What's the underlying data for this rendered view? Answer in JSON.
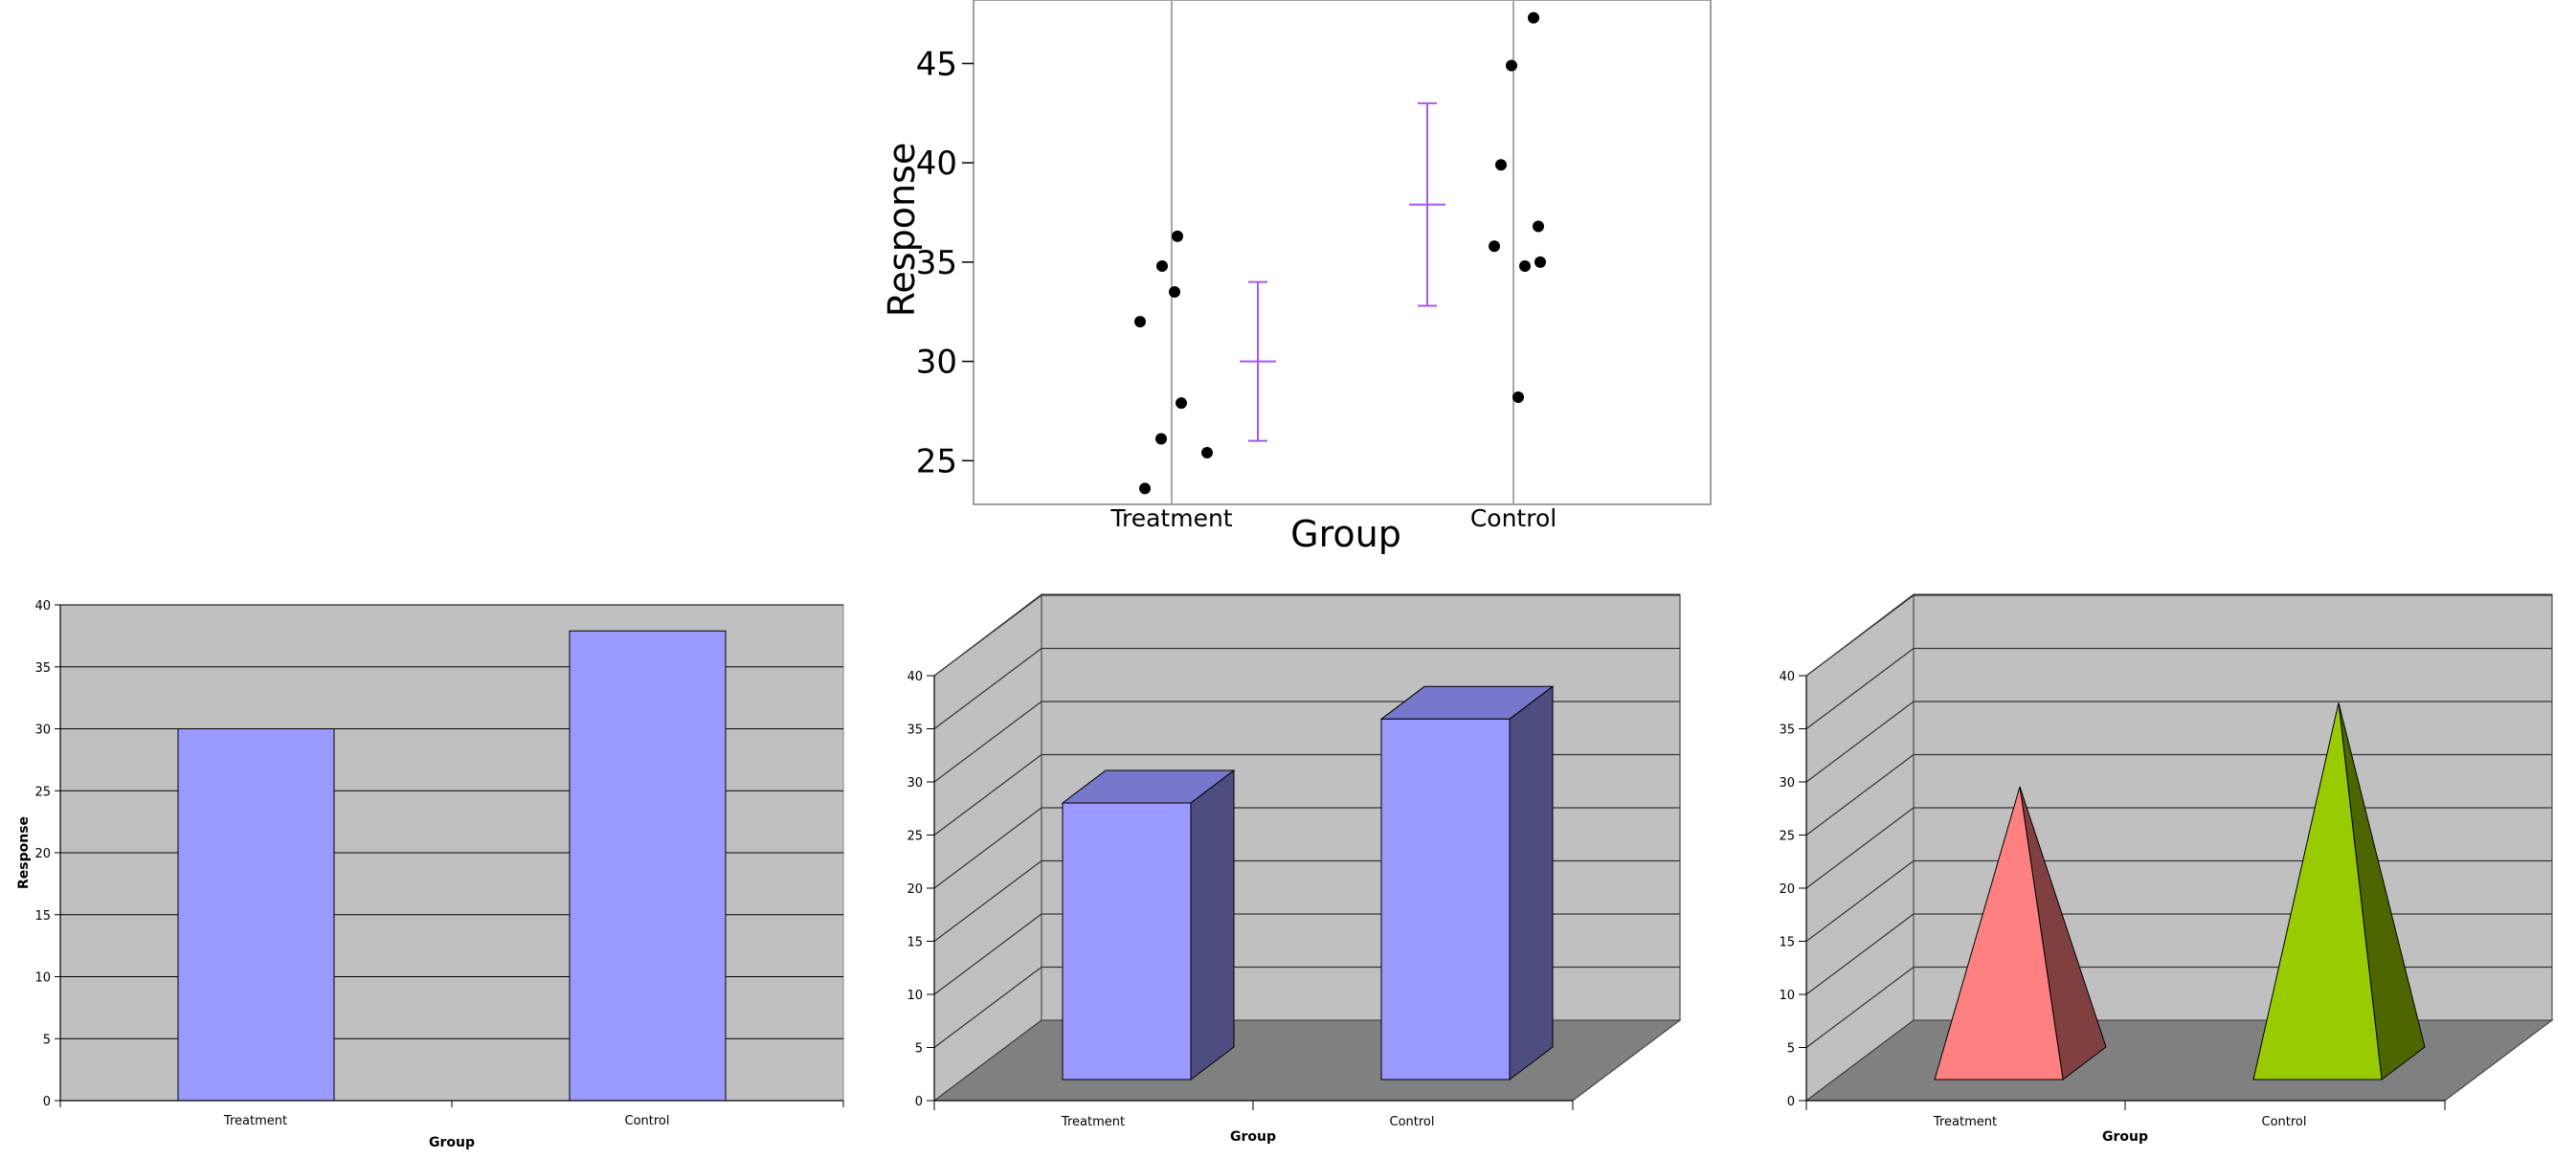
{
  "chart_data": [
    {
      "type": "scatter",
      "xlabel": "Group",
      "ylabel": "Response",
      "categories": [
        "Treatment",
        "Control"
      ],
      "yticks": [
        25,
        30,
        35,
        40,
        45
      ],
      "ylim": [
        22.8,
        48.2
      ],
      "grid": "vertical lines at categories",
      "points": [
        {
          "group": "Treatment",
          "y": 32.0
        },
        {
          "group": "Treatment",
          "y": 34.8
        },
        {
          "group": "Treatment",
          "y": 36.3
        },
        {
          "group": "Treatment",
          "y": 33.5
        },
        {
          "group": "Treatment",
          "y": 27.9
        },
        {
          "group": "Treatment",
          "y": 26.1
        },
        {
          "group": "Treatment",
          "y": 25.4
        },
        {
          "group": "Treatment",
          "y": 23.6
        },
        {
          "group": "Control",
          "y": 47.3
        },
        {
          "group": "Control",
          "y": 44.9
        },
        {
          "group": "Control",
          "y": 39.9
        },
        {
          "group": "Control",
          "y": 35.8
        },
        {
          "group": "Control",
          "y": 34.8
        },
        {
          "group": "Control",
          "y": 36.8
        },
        {
          "group": "Control",
          "y": 35.0
        },
        {
          "group": "Control",
          "y": 28.2
        }
      ],
      "error_bars": [
        {
          "group": "Treatment",
          "mean": 30.0,
          "low": 26.0,
          "high": 34.0
        },
        {
          "group": "Control",
          "mean": 37.9,
          "low": 32.8,
          "high": 43.0
        }
      ],
      "colors": {
        "points": "#000000",
        "error_bars": "#a855f7",
        "grid": "#a8a8a8"
      }
    },
    {
      "type": "bar",
      "xlabel": "Group",
      "ylabel": "Response",
      "categories": [
        "Treatment",
        "Control"
      ],
      "values": [
        30.0,
        37.9
      ],
      "ylim": [
        0,
        40
      ],
      "yticks": [
        0,
        5,
        10,
        15,
        20,
        25,
        30,
        35,
        40
      ],
      "grid": "horizontal",
      "colors": {
        "bar": "#9999ff",
        "plot_bg": "#c0c0c0"
      }
    },
    {
      "type": "bar",
      "style": "3d-column",
      "xlabel": "Group",
      "ylabel": "",
      "categories": [
        "Treatment",
        "Control"
      ],
      "values": [
        30.0,
        37.9
      ],
      "ylim": [
        0,
        40
      ],
      "yticks": [
        0,
        5,
        10,
        15,
        20,
        25,
        30,
        35,
        40
      ],
      "grid": "horizontal",
      "colors": {
        "front": "#9999ff",
        "top": "#7777cc",
        "side": "#4d4d80",
        "wall": "#c0c0c0",
        "floor": "#808080"
      }
    },
    {
      "type": "bar",
      "style": "3d-pyramid",
      "xlabel": "Group",
      "ylabel": "",
      "categories": [
        "Treatment",
        "Control"
      ],
      "values": [
        30.0,
        37.9
      ],
      "ylim": [
        0,
        40
      ],
      "yticks": [
        0,
        5,
        10,
        15,
        20,
        25,
        30,
        35,
        40
      ],
      "grid": "horizontal",
      "series_colors": [
        {
          "front": "#ff8080",
          "side": "#804040"
        },
        {
          "front": "#99cc00",
          "side": "#4d6600"
        }
      ],
      "colors": {
        "wall": "#c0c0c0",
        "floor": "#808080"
      }
    }
  ]
}
